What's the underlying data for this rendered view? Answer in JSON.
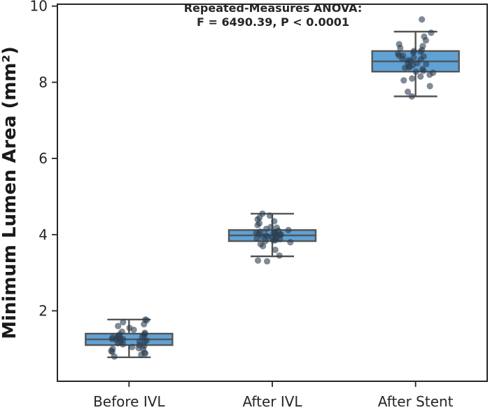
{
  "chart_data": {
    "type": "box",
    "categories": [
      "Before IVL",
      "After IVL",
      "After Stent"
    ],
    "ylabel": "Minimum Lumen Area (mm²)",
    "xlabel": "",
    "ylim": [
      0,
      10
    ],
    "yticks": [
      2,
      4,
      6,
      8,
      10
    ],
    "annotation": [
      "Repeated-Measures ANOVA:",
      "F = 6490.39, P < 0.0001"
    ],
    "box_color": "#5fa2d6",
    "point_color": "#2c3e50",
    "boxes": [
      {
        "category": "Before IVL",
        "whisker_low": 0.78,
        "q1": 1.1,
        "median": 1.25,
        "q3": 1.4,
        "whisker_high": 1.77
      },
      {
        "category": "After IVL",
        "whisker_low": 3.43,
        "q1": 3.83,
        "median": 3.98,
        "q3": 4.12,
        "whisker_high": 4.55
      },
      {
        "category": "After Stent",
        "whisker_low": 7.63,
        "q1": 8.28,
        "median": 8.55,
        "q3": 8.82,
        "whisker_high": 9.33
      }
    ],
    "points": [
      [
        0.8,
        0.85,
        0.88,
        0.92,
        0.95,
        1.0,
        1.02,
        1.05,
        1.08,
        1.1,
        1.12,
        1.15,
        1.18,
        1.2,
        1.22,
        1.24,
        1.25,
        1.26,
        1.28,
        1.3,
        1.32,
        1.33,
        1.35,
        1.38,
        1.4,
        1.42,
        1.45,
        1.5,
        1.55,
        1.6,
        1.65,
        1.7,
        1.75,
        1.77,
        1.2,
        1.3,
        0.9,
        1.0
      ],
      [
        3.3,
        3.32,
        3.45,
        3.6,
        3.7,
        3.75,
        3.8,
        3.83,
        3.85,
        3.88,
        3.9,
        3.92,
        3.95,
        3.97,
        3.98,
        4.0,
        4.02,
        4.03,
        4.05,
        4.07,
        4.08,
        4.1,
        4.12,
        4.15,
        4.18,
        4.2,
        4.25,
        4.3,
        4.35,
        4.4,
        4.45,
        4.5,
        4.55,
        3.95,
        4.05,
        3.9,
        4.0,
        3.85
      ],
      [
        7.63,
        7.75,
        7.9,
        8.05,
        8.1,
        8.15,
        8.2,
        8.25,
        8.28,
        8.3,
        8.35,
        8.38,
        8.4,
        8.45,
        8.48,
        8.5,
        8.52,
        8.55,
        8.58,
        8.6,
        8.62,
        8.65,
        8.68,
        8.7,
        8.75,
        8.78,
        8.8,
        8.82,
        8.85,
        8.9,
        8.95,
        9.0,
        9.1,
        9.2,
        9.3,
        9.65,
        8.4,
        8.7
      ]
    ]
  }
}
